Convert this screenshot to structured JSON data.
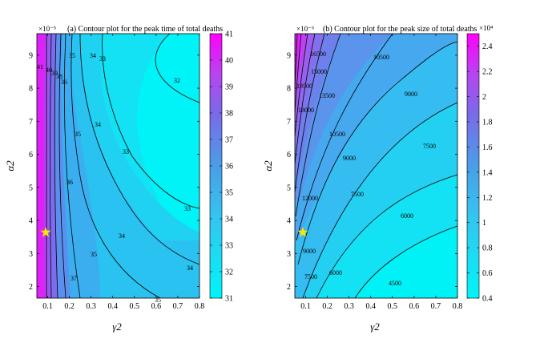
{
  "chart_data": [
    {
      "type": "contour",
      "title": "(a) Contour plot for the peak time of total deaths",
      "xlabel": "γ2",
      "ylabel": "α2",
      "ymultiplier": "×10⁻⁵",
      "xlim": [
        0.05,
        0.8
      ],
      "ylim": [
        1.65,
        9.65
      ],
      "xticks": [
        "0.1",
        "0.2",
        "0.3",
        "0.4",
        "0.5",
        "0.6",
        "0.7",
        "0.8"
      ],
      "yticks": [
        "2",
        "3",
        "4",
        "5",
        "6",
        "7",
        "8",
        "9"
      ],
      "colorbar": {
        "min": 31,
        "max": 41,
        "ticks": [
          "31",
          "32",
          "33",
          "34",
          "35",
          "36",
          "37",
          "38",
          "39",
          "40",
          "41"
        ]
      },
      "contour_levels": [
        32,
        33,
        34,
        35,
        36,
        37,
        38,
        39,
        40,
        41
      ],
      "contour_labels": [
        "32",
        "33",
        "33",
        "33",
        "34",
        "34",
        "34",
        "34",
        "35",
        "35",
        "35",
        "35",
        "36",
        "36",
        "37",
        "38",
        "39",
        "40",
        "41"
      ],
      "marker": {
        "shape": "star",
        "x": 0.1,
        "y": 3.7,
        "color": "#ffe600"
      },
      "colors": {
        "low": "#00f5f8",
        "high": "#ff00ff"
      }
    },
    {
      "type": "contour",
      "title": "(b) Contour plot for the peak size of total deaths",
      "xlabel": "γ2",
      "ylabel": "α2",
      "ymultiplier": "×10⁻⁵",
      "xlim": [
        0.05,
        0.8
      ],
      "ylim": [
        1.65,
        9.65
      ],
      "xticks": [
        "0.1",
        "0.2",
        "0.3",
        "0.4",
        "0.5",
        "0.6",
        "0.7",
        "0.8"
      ],
      "yticks": [
        "2",
        "3",
        "4",
        "5",
        "6",
        "7",
        "8",
        "9"
      ],
      "colorbar": {
        "min": 0.4,
        "max": 2.5,
        "multiplier": "×10⁴",
        "ticks": [
          "0.4",
          "0.6",
          "0.8",
          "1",
          "1.2",
          "1.4",
          "1.6",
          "1.8",
          "2",
          "2.2",
          "2.4"
        ]
      },
      "contour_levels": [
        4500,
        6000,
        7500,
        9000,
        10500,
        12000,
        13500,
        15000,
        16500,
        18000,
        19500,
        21000
      ],
      "contour_labels": [
        "4500",
        "6000",
        "6000",
        "7500",
        "7500",
        "7500",
        "9000",
        "9000",
        "9000",
        "10500",
        "10500",
        "12000",
        "13500",
        "15000",
        "16500",
        "18000",
        "19500"
      ],
      "marker": {
        "shape": "star",
        "x": 0.1,
        "y": 3.7,
        "color": "#ffe600"
      },
      "colors": {
        "low": "#00f5f8",
        "high": "#ff00ff"
      }
    }
  ]
}
